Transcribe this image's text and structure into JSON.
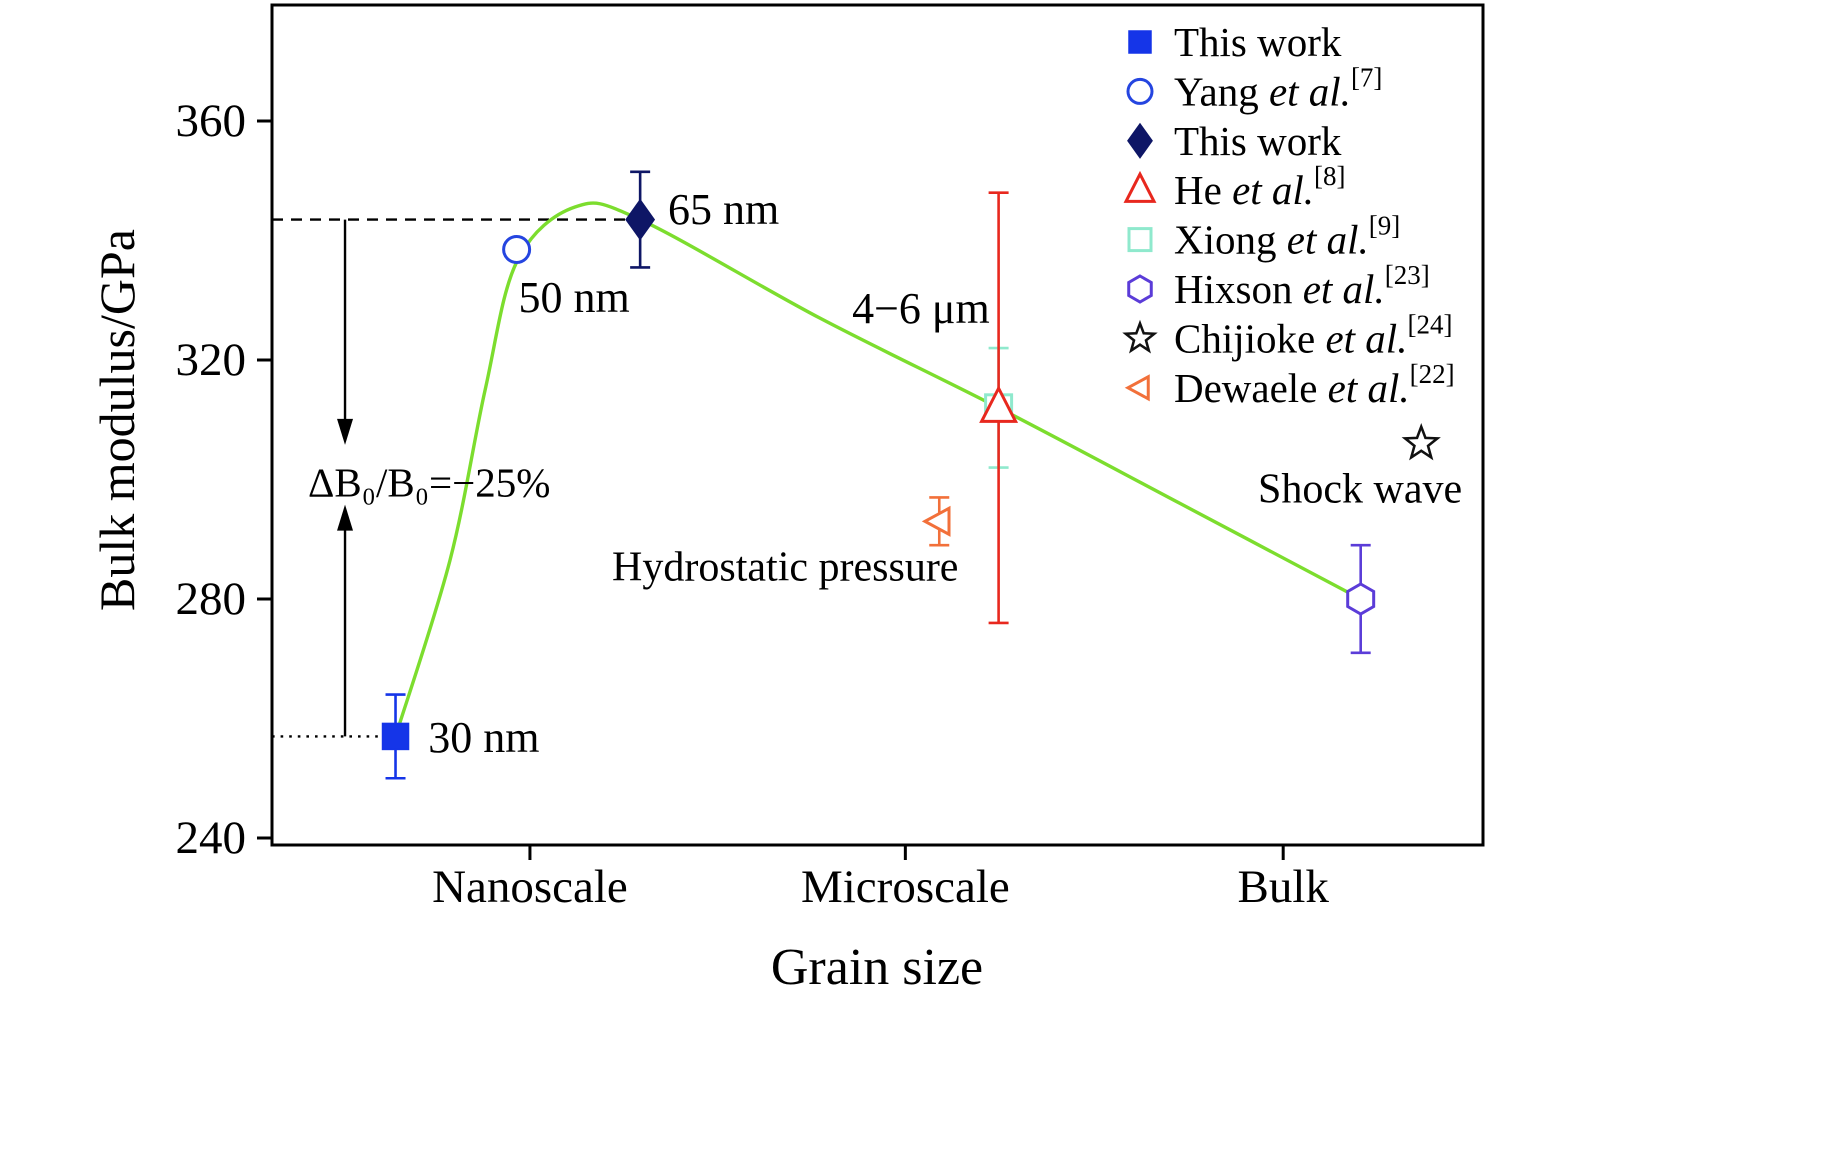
{
  "page": {
    "background": "#ffffff"
  },
  "chart_data": {
    "type": "scatter",
    "title": "",
    "xlabel": "Grain size",
    "ylabel": "Bulk modulus/GPa",
    "ylim": [
      240,
      375
    ],
    "yticks": [
      240,
      280,
      320,
      360
    ],
    "xticks": [
      {
        "pos": 0.213,
        "label": "Nanoscale"
      },
      {
        "pos": 0.523,
        "label": "Microscale"
      },
      {
        "pos": 0.835,
        "label": "Bulk"
      }
    ],
    "grid": false,
    "curve": {
      "color": "#7cdd2e",
      "points": [
        [
          0.102,
          257
        ],
        [
          0.147,
          286.5
        ],
        [
          0.176,
          315
        ],
        [
          0.2023,
          336.5
        ],
        [
          0.2502,
          345.6
        ],
        [
          0.3039,
          343.5
        ],
        [
          0.4525,
          327
        ],
        [
          0.6,
          312
        ],
        [
          0.7498,
          296
        ],
        [
          0.899,
          280
        ]
      ]
    },
    "points": [
      {
        "name": "this-work-30nm",
        "series": "This work",
        "marker": "square",
        "filled": true,
        "color": "#1535e8",
        "x": 0.102,
        "y": 257,
        "err_up": 7,
        "err_down": 7,
        "label": "30 nm"
      },
      {
        "name": "yang-50nm",
        "series": "Yang et al.",
        "marker": "circle",
        "filled": false,
        "color": "#2545e0",
        "x": 0.202,
        "y": 338.5,
        "label": "50 nm"
      },
      {
        "name": "this-work-65nm",
        "series": "This work",
        "marker": "diamond",
        "filled": true,
        "color": "#0e1666",
        "x": 0.304,
        "y": 343.5,
        "err_up": 8,
        "err_down": 8,
        "label": "65 nm"
      },
      {
        "name": "xiong",
        "series": "Xiong et al.",
        "marker": "square",
        "filled": false,
        "color": "#8fe9cd",
        "x": 0.6,
        "y": 312,
        "err_up": 10,
        "err_down": 10
      },
      {
        "name": "he",
        "series": "He et al.",
        "marker": "triangle-up",
        "filled": false,
        "color": "#e8281e",
        "x": 0.6,
        "y": 312,
        "err_up": 36,
        "err_down": 36,
        "label": "4−6 μm"
      },
      {
        "name": "dewaele",
        "series": "Dewaele et al.",
        "marker": "triangle-left",
        "filled": false,
        "color": "#f2703a",
        "x": 0.551,
        "y": 293,
        "err_up": 4,
        "err_down": 4
      },
      {
        "name": "hixson",
        "series": "Hixson et al.",
        "marker": "hexagon",
        "filled": false,
        "color": "#5b3cd8",
        "x": 0.899,
        "y": 280,
        "err_up": 9,
        "err_down": 9
      },
      {
        "name": "chijioke",
        "series": "Chijioke et al.",
        "marker": "star",
        "filled": false,
        "color": "#111111",
        "x": 0.949,
        "y": 306
      }
    ],
    "legend": {
      "items": [
        {
          "marker": "square",
          "filled": true,
          "color": "#1535e8",
          "prefix": "This work",
          "italic": "",
          "sup": ""
        },
        {
          "marker": "circle",
          "filled": false,
          "color": "#2545e0",
          "prefix": "Yang ",
          "italic": "et al.",
          "sup": "[7]"
        },
        {
          "marker": "diamond",
          "filled": true,
          "color": "#0e1666",
          "prefix": "This work",
          "italic": "",
          "sup": ""
        },
        {
          "marker": "triangle-up",
          "filled": false,
          "color": "#e8281e",
          "prefix": "He ",
          "italic": "et al.",
          "sup": "[8]"
        },
        {
          "marker": "square",
          "filled": false,
          "color": "#8fe9cd",
          "prefix": "Xiong ",
          "italic": "et al.",
          "sup": "[9]"
        },
        {
          "marker": "hexagon",
          "filled": false,
          "color": "#5b3cd8",
          "prefix": "Hixson ",
          "italic": "et al.",
          "sup": "[23]"
        },
        {
          "marker": "star",
          "filled": false,
          "color": "#111111",
          "prefix": "Chijioke ",
          "italic": "et al.",
          "sup": "[24]"
        },
        {
          "marker": "triangle-left",
          "filled": false,
          "color": "#f2703a",
          "prefix": "Dewaele ",
          "italic": "et al.",
          "sup": "[22]"
        }
      ]
    },
    "annotations": {
      "ref_lines": [
        {
          "style": "dashed",
          "y": 343.5,
          "x0": 0,
          "x1": 0.304
        },
        {
          "style": "dotted",
          "y": 257,
          "x0": 0,
          "x1": 0.102
        }
      ],
      "arrows": [
        {
          "x": 0.0603,
          "from": 343.5,
          "to": 305.8
        },
        {
          "x": 0.0603,
          "from": 257,
          "to": 295.8
        }
      ],
      "texts": [
        {
          "text": "65 nm",
          "x": 0.327,
          "y": 345.2,
          "size": 44
        },
        {
          "text": "50 nm",
          "x": 0.2035,
          "y": 330.5,
          "size": 44
        },
        {
          "text": "30 nm",
          "x": 0.129,
          "y": 256.8,
          "size": 44
        },
        {
          "text": "4−6 μm",
          "x": 0.479,
          "y": 328.6,
          "size": 44
        },
        {
          "text": "Hydrostatic pressure",
          "x": 0.2808,
          "y": 285.3,
          "size": 42
        },
        {
          "text": "Shock wave",
          "x": 0.8142,
          "y": 298.3,
          "size": 42
        },
        {
          "text": "ΔB₀/B₀=−25%",
          "x": 0.0297,
          "y": 299.5,
          "size": 41
        }
      ]
    }
  }
}
